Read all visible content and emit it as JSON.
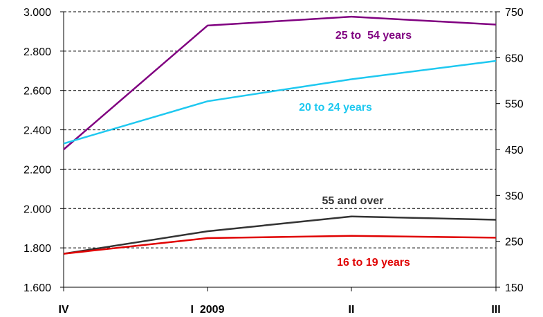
{
  "chart_data": {
    "type": "line",
    "x": [
      "IV",
      "I  2009",
      "II",
      "III"
    ],
    "left_axis": {
      "ticks": [
        "3.000",
        "2.800",
        "2.600",
        "2.400",
        "2.200",
        "2.000",
        "1.800",
        "1.600"
      ],
      "range": [
        1600,
        3000
      ]
    },
    "right_axis": {
      "ticks": [
        "750",
        "650",
        "550",
        "450",
        "350",
        "250",
        "150"
      ],
      "range": [
        150,
        750
      ]
    },
    "gridlines": "dashed",
    "series": [
      {
        "name": "25 to  54 years",
        "axis": "left",
        "color": "#800080",
        "values": [
          2300,
          2930,
          2975,
          2935
        ]
      },
      {
        "name": "20 to 24 years",
        "axis": "right",
        "color": "#1ec8f0",
        "values": [
          463,
          555,
          603,
          643
        ]
      },
      {
        "name": "55 and over",
        "axis": "right",
        "color": "#333333",
        "values": [
          223,
          272,
          304,
          297
        ]
      },
      {
        "name": "16 to 19 years",
        "axis": "right",
        "color": "#e00000",
        "values": [
          223,
          257,
          262,
          258
        ]
      }
    ]
  }
}
